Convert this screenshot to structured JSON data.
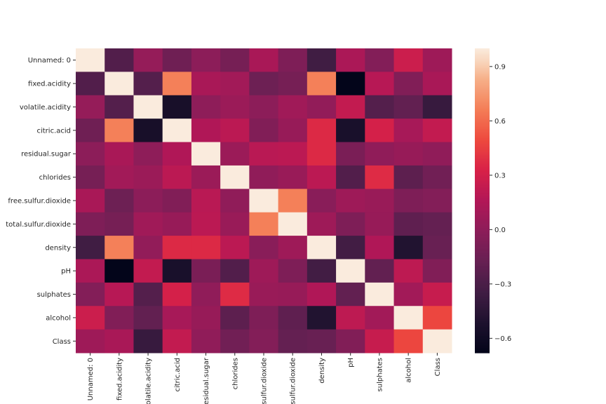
{
  "chart_data": {
    "type": "heatmap",
    "title": "",
    "xlabel": "",
    "ylabel": "",
    "x_labels": [
      "Unnamed: 0",
      "fixed.acidity",
      "volatile.acidity",
      "citric.acid",
      "residual.sugar",
      "chlorides",
      "free.sulfur.dioxide",
      "total.sulfur.dioxide",
      "density",
      "pH",
      "sulphates",
      "alcohol",
      "Class"
    ],
    "y_labels": [
      "Unnamed: 0",
      "fixed.acidity",
      "volatile.acidity",
      "citric.acid",
      "residual.sugar",
      "chlorides",
      "free.sulfur.dioxide",
      "total.sulfur.dioxide",
      "density",
      "pH",
      "sulphates",
      "alcohol",
      "Class"
    ],
    "values": [
      [
        1.0,
        -0.27,
        0.03,
        -0.14,
        -0.01,
        -0.11,
        0.12,
        -0.07,
        -0.35,
        0.13,
        -0.05,
        0.27,
        0.07
      ],
      [
        -0.27,
        1.0,
        -0.26,
        0.67,
        0.12,
        0.09,
        -0.15,
        -0.11,
        0.67,
        -0.68,
        0.18,
        -0.06,
        0.12
      ],
      [
        0.03,
        -0.26,
        1.0,
        -0.55,
        0.0,
        0.06,
        -0.01,
        0.08,
        0.02,
        0.23,
        -0.26,
        -0.2,
        -0.39
      ],
      [
        -0.14,
        0.67,
        -0.55,
        1.0,
        0.15,
        0.2,
        -0.06,
        0.04,
        0.36,
        -0.54,
        0.31,
        0.11,
        0.23
      ],
      [
        -0.01,
        0.12,
        0.0,
        0.15,
        1.0,
        0.06,
        0.19,
        0.2,
        0.36,
        -0.09,
        0.01,
        0.04,
        0.01
      ],
      [
        -0.11,
        0.09,
        0.06,
        0.2,
        0.06,
        1.0,
        0.01,
        0.05,
        0.2,
        -0.27,
        0.37,
        -0.22,
        -0.13
      ],
      [
        0.12,
        -0.15,
        -0.01,
        -0.06,
        0.19,
        0.01,
        1.0,
        0.67,
        -0.02,
        0.07,
        0.05,
        -0.07,
        -0.05
      ],
      [
        -0.07,
        -0.11,
        0.08,
        0.04,
        0.2,
        0.05,
        0.67,
        1.0,
        0.07,
        -0.07,
        0.04,
        -0.21,
        -0.19
      ],
      [
        -0.35,
        0.67,
        0.02,
        0.36,
        0.36,
        0.2,
        -0.02,
        0.07,
        1.0,
        -0.34,
        0.15,
        -0.5,
        -0.17
      ],
      [
        0.13,
        -0.68,
        0.23,
        -0.54,
        -0.09,
        -0.27,
        0.07,
        -0.07,
        -0.34,
        1.0,
        -0.2,
        0.21,
        -0.06
      ],
      [
        -0.05,
        0.18,
        -0.26,
        0.31,
        0.01,
        0.37,
        0.05,
        0.04,
        0.15,
        -0.2,
        1.0,
        0.09,
        0.25
      ],
      [
        0.27,
        -0.06,
        -0.2,
        0.11,
        0.04,
        -0.22,
        -0.07,
        -0.21,
        -0.5,
        0.21,
        0.09,
        1.0,
        0.48
      ],
      [
        0.07,
        0.12,
        -0.39,
        0.23,
        0.01,
        -0.13,
        -0.05,
        -0.19,
        -0.17,
        -0.06,
        0.25,
        0.48,
        1.0
      ]
    ],
    "vmin": -0.68,
    "vmax": 1.0,
    "colormap": "rocket",
    "colorbar_ticks": [
      "0.9",
      "0.6",
      "0.3",
      "0.0",
      "−0.3",
      "−0.6"
    ],
    "colorbar_tick_values": [
      0.9,
      0.6,
      0.3,
      0.0,
      -0.3,
      -0.6
    ]
  }
}
